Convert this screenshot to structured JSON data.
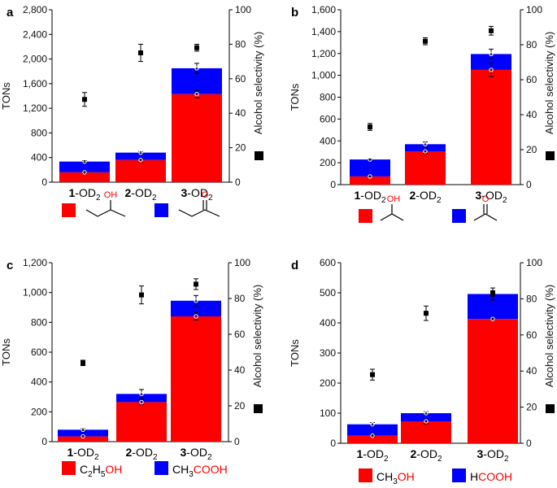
{
  "chart_data": [
    {
      "panel": "a",
      "type": "bar",
      "stacked": true,
      "categories": [
        "1-OD2",
        "2-OD2",
        "3-OD2"
      ],
      "category_labels": [
        {
          "num": "1",
          "rest": "-OD",
          "sub": "2"
        },
        {
          "num": "2",
          "rest": "-OD",
          "sub": "2"
        },
        {
          "num": "3",
          "rest": "-OD",
          "sub": "2"
        }
      ],
      "series": [
        {
          "name": "alcohol (2-butanol)",
          "color": "#ff0000",
          "values": [
            160,
            360,
            1430
          ],
          "errors": [
            20,
            30,
            60
          ]
        },
        {
          "name": "ketone (2-butanone)",
          "color": "#0000ff",
          "values": [
            175,
            120,
            420
          ],
          "errors": [
            15,
            20,
            80
          ]
        }
      ],
      "selectivity": {
        "values": [
          48,
          75,
          78
        ],
        "errors": [
          4,
          5,
          2
        ]
      },
      "ylabel": "TONs",
      "y2label": "Alcohol selectivity (%)",
      "ylim": [
        0,
        2800
      ],
      "yticks": [
        0,
        400,
        800,
        1200,
        1600,
        2000,
        2400,
        2800
      ],
      "ytick_labels": [
        "0",
        "400",
        "800",
        "1,200",
        "1,600",
        "2,000",
        "2,400",
        "2,800"
      ],
      "y2lim": [
        0,
        100
      ],
      "y2ticks": [
        0,
        20,
        40,
        60,
        80,
        100
      ],
      "legend": [
        {
          "color": "#ff0000",
          "structure": "2-butanol",
          "atom": "OH"
        },
        {
          "color": "#0000ff",
          "structure": "2-butanone",
          "atom": "O"
        }
      ]
    },
    {
      "panel": "b",
      "type": "bar",
      "stacked": true,
      "categories": [
        "1-OD2",
        "2-OD2",
        "3-OD2"
      ],
      "category_labels": [
        {
          "num": "1",
          "rest": "-OD",
          "sub": "2"
        },
        {
          "num": "2",
          "rest": "-OD",
          "sub": "2"
        },
        {
          "num": "3",
          "rest": "-OD",
          "sub": "2"
        }
      ],
      "series": [
        {
          "name": "alcohol (2-propanol)",
          "color": "#ff0000",
          "values": [
            75,
            305,
            1050
          ],
          "errors": [
            5,
            20,
            60
          ]
        },
        {
          "name": "ketone (acetone)",
          "color": "#0000ff",
          "values": [
            155,
            65,
            145
          ],
          "errors": [
            5,
            20,
            45
          ]
        }
      ],
      "selectivity": {
        "values": [
          33,
          82,
          88
        ],
        "errors": [
          2,
          2,
          2.5
        ]
      },
      "ylabel": "TONs",
      "y2label": "Alcohol selectivity (%)",
      "ylim": [
        0,
        1600
      ],
      "yticks": [
        0,
        200,
        400,
        600,
        800,
        1000,
        1200,
        1400,
        1600
      ],
      "ytick_labels": [
        "0",
        "200",
        "400",
        "600",
        "800",
        "1,000",
        "1,200",
        "1,400",
        "1,600"
      ],
      "y2lim": [
        0,
        100
      ],
      "y2ticks": [
        0,
        20,
        40,
        60,
        80,
        100
      ],
      "legend": [
        {
          "color": "#ff0000",
          "structure": "2-propanol",
          "atom": "OH"
        },
        {
          "color": "#0000ff",
          "structure": "acetone",
          "atom": "O"
        }
      ]
    },
    {
      "panel": "c",
      "type": "bar",
      "stacked": true,
      "categories": [
        "1-OD2",
        "2-OD2",
        "3-OD2"
      ],
      "category_labels": [
        {
          "num": "1",
          "rest": "-OD",
          "sub": "2"
        },
        {
          "num": "2",
          "rest": "-OD",
          "sub": "2"
        },
        {
          "num": "3",
          "rest": "-OD",
          "sub": "2"
        }
      ],
      "series": [
        {
          "name": "C2H5OH",
          "color": "#ff0000",
          "values": [
            35,
            265,
            840
          ],
          "errors": [
            8,
            15,
            25
          ]
        },
        {
          "name": "CH3COOH",
          "color": "#0000ff",
          "values": [
            45,
            55,
            105
          ],
          "errors": [
            8,
            30,
            35
          ]
        }
      ],
      "selectivity": {
        "values": [
          44,
          82,
          88
        ],
        "errors": [
          1.5,
          5,
          3
        ]
      },
      "ylabel": "TONs",
      "y2label": "Alcohol selectivity (%)",
      "ylim": [
        0,
        1200
      ],
      "yticks": [
        0,
        200,
        400,
        600,
        800,
        1000,
        1200
      ],
      "ytick_labels": [
        "0",
        "200",
        "400",
        "600",
        "800",
        "1,000",
        "1,200"
      ],
      "y2lim": [
        0,
        100
      ],
      "y2ticks": [
        0,
        20,
        40,
        60,
        80,
        100
      ],
      "legend": [
        {
          "color": "#ff0000",
          "label": [
            {
              "t": "C",
              "c": "k"
            },
            {
              "t": "2",
              "c": "k",
              "sub": true
            },
            {
              "t": "H",
              "c": "k"
            },
            {
              "t": "5",
              "c": "k",
              "sub": true
            },
            {
              "t": "OH",
              "c": "r"
            }
          ]
        },
        {
          "color": "#0000ff",
          "label": [
            {
              "t": "CH",
              "c": "k"
            },
            {
              "t": "3",
              "c": "k",
              "sub": true
            },
            {
              "t": "COOH",
              "c": "r"
            }
          ]
        }
      ]
    },
    {
      "panel": "d",
      "type": "bar",
      "stacked": true,
      "categories": [
        "1-OD2",
        "2-OD2",
        "3-OD2"
      ],
      "category_labels": [
        {
          "num": "1",
          "rest": "-OD",
          "sub": "2"
        },
        {
          "num": "2",
          "rest": "-OD",
          "sub": "2"
        },
        {
          "num": "3",
          "rest": "-OD",
          "sub": "2"
        }
      ],
      "series": [
        {
          "name": "CH3OH",
          "color": "#ff0000",
          "values": [
            25,
            73,
            413
          ],
          "errors": [
            4,
            8,
            3
          ]
        },
        {
          "name": "HCOOH",
          "color": "#0000ff",
          "values": [
            38,
            27,
            83
          ],
          "errors": [
            6,
            5,
            20
          ]
        }
      ],
      "selectivity": {
        "values": [
          38,
          72,
          83
        ],
        "errors": [
          3,
          4,
          1.5
        ]
      },
      "ylabel": "TONs",
      "y2label": "Alcohol selectivity (%)",
      "ylim": [
        0,
        600
      ],
      "yticks": [
        0,
        100,
        200,
        300,
        400,
        500,
        600
      ],
      "ytick_labels": [
        "0",
        "100",
        "200",
        "300",
        "400",
        "500",
        "600"
      ],
      "y2lim": [
        0,
        100
      ],
      "y2ticks": [
        0,
        20,
        40,
        60,
        80,
        100
      ],
      "legend": [
        {
          "color": "#ff0000",
          "label": [
            {
              "t": "CH",
              "c": "k"
            },
            {
              "t": "3",
              "c": "k",
              "sub": true
            },
            {
              "t": "OH",
              "c": "r"
            }
          ]
        },
        {
          "color": "#0000ff",
          "label": [
            {
              "t": "H",
              "c": "k"
            },
            {
              "t": "COOH",
              "c": "r"
            }
          ]
        }
      ]
    }
  ],
  "colors": {
    "alcohol": "#ff0000",
    "ketone": "#0000ff",
    "heteroatom_text": "#ff0000",
    "marker": "#000000"
  }
}
